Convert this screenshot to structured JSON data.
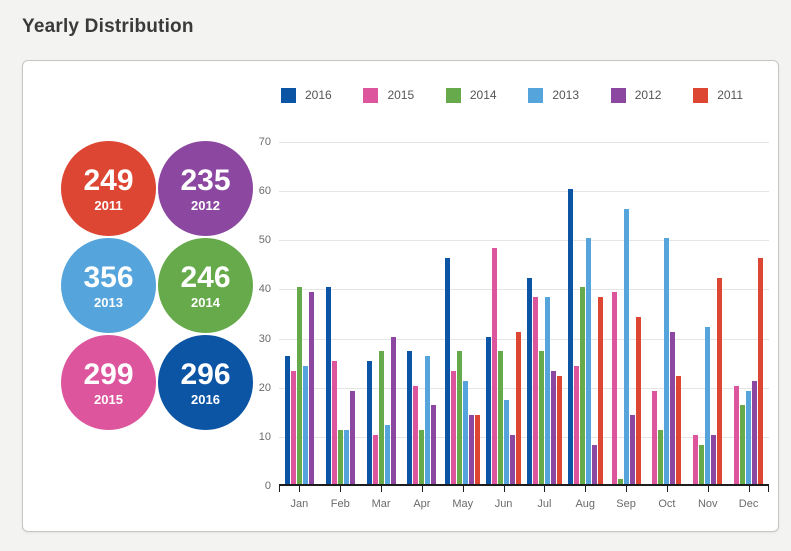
{
  "page": {
    "title": "Yearly Distribution"
  },
  "summary_circles": [
    {
      "value": "249",
      "year": "2011",
      "color": "#dc4633"
    },
    {
      "value": "235",
      "year": "2012",
      "color": "#8c47a0"
    },
    {
      "value": "356",
      "year": "2013",
      "color": "#55a5dc"
    },
    {
      "value": "246",
      "year": "2014",
      "color": "#67aa4b"
    },
    {
      "value": "299",
      "year": "2015",
      "color": "#dc559d"
    },
    {
      "value": "296",
      "year": "2016",
      "color": "#0c55a5"
    }
  ],
  "chart_data": {
    "type": "bar",
    "title": "Yearly Distribution",
    "categories": [
      "Jan",
      "Feb",
      "Mar",
      "Apr",
      "May",
      "Jun",
      "Jul",
      "Aug",
      "Sep",
      "Oct",
      "Nov",
      "Dec"
    ],
    "series": [
      {
        "name": "2016",
        "color": "#0c55a5",
        "values": [
          26,
          40,
          25,
          27,
          46,
          30,
          42,
          60,
          0,
          0,
          0,
          0
        ]
      },
      {
        "name": "2015",
        "color": "#dc559d",
        "values": [
          23,
          25,
          10,
          20,
          23,
          48,
          38,
          24,
          39,
          19,
          10,
          20
        ]
      },
      {
        "name": "2014",
        "color": "#67aa4b",
        "values": [
          40,
          11,
          27,
          11,
          27,
          27,
          27,
          40,
          1,
          11,
          8,
          16
        ]
      },
      {
        "name": "2013",
        "color": "#55a5dc",
        "values": [
          24,
          11,
          12,
          26,
          21,
          17,
          38,
          50,
          56,
          50,
          32,
          19
        ]
      },
      {
        "name": "2012",
        "color": "#8c47a0",
        "values": [
          39,
          19,
          30,
          16,
          14,
          10,
          23,
          8,
          14,
          31,
          10,
          21
        ]
      },
      {
        "name": "2011",
        "color": "#dc4633",
        "values": [
          0,
          0,
          0,
          0,
          14,
          31,
          22,
          38,
          34,
          22,
          42,
          46
        ]
      }
    ],
    "ylim": [
      0,
      70
    ],
    "ytick_interval": 10,
    "grid": true,
    "legend_position": "top"
  }
}
